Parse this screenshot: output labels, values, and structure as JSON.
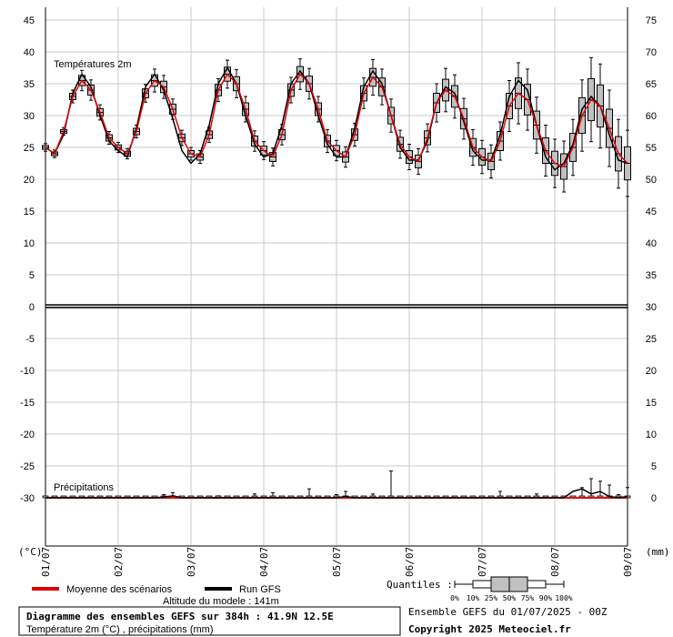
{
  "chart_data": {
    "type": "line",
    "panels": [
      {
        "name": "Températures 2m",
        "unit": "(°C)"
      },
      {
        "name": "Précipitations",
        "unit": "(mm)"
      }
    ],
    "left_axis_ticks": [
      "45",
      "40",
      "35",
      "30",
      "25",
      "20",
      "15",
      "10",
      "5",
      "0",
      "-5",
      "-10",
      "-15",
      "-20",
      "-25",
      "-30"
    ],
    "right_axis_ticks": [
      "75",
      "70",
      "65",
      "60",
      "55",
      "50",
      "45",
      "40",
      "35",
      "30",
      "25",
      "20",
      "15",
      "10",
      "5",
      "0"
    ],
    "x_tick_labels": [
      "01/07",
      "02/07",
      "03/07",
      "04/07",
      "05/07",
      "06/07",
      "07/07",
      "08/07",
      "09/07"
    ],
    "temp_ylim": [
      -30,
      45
    ],
    "temp_box_hours": [
      0,
      6,
      12,
      18,
      24,
      30,
      36,
      42,
      48,
      54,
      60,
      66,
      72,
      78,
      84,
      90,
      96,
      102,
      108,
      114,
      120,
      126,
      132,
      138,
      144,
      150,
      156,
      162,
      168,
      174,
      180,
      186,
      192,
      198,
      204,
      210,
      216,
      222,
      228,
      234,
      240,
      246,
      252,
      258,
      264,
      270,
      276,
      282,
      288,
      294,
      300,
      306,
      312,
      318,
      324,
      330,
      336,
      342,
      348,
      354,
      360,
      366,
      372,
      378,
      384
    ],
    "temp_mean": [
      25.0,
      24.0,
      27.5,
      33.0,
      35.5,
      34.0,
      30.5,
      26.5,
      25.0,
      24.0,
      27.5,
      33.5,
      35.5,
      34.5,
      31.0,
      26.5,
      24.0,
      23.5,
      27.0,
      34.0,
      36.5,
      35.0,
      31.0,
      26.0,
      24.5,
      23.5,
      27.0,
      34.0,
      36.5,
      35.0,
      31.0,
      26.0,
      24.5,
      23.5,
      27.0,
      33.5,
      36.0,
      34.5,
      30.0,
      25.5,
      23.5,
      22.8,
      26.5,
      32.0,
      34.0,
      33.0,
      29.5,
      25.0,
      23.5,
      22.8,
      26.0,
      31.5,
      33.5,
      32.5,
      28.5,
      24.5,
      22.5,
      22.0,
      25.0,
      30.0,
      32.5,
      31.5,
      28.0,
      24.0,
      22.5
    ],
    "temp_spread": [
      0.3,
      0.3,
      0.3,
      0.5,
      0.8,
      0.8,
      0.6,
      0.5,
      0.4,
      0.4,
      0.5,
      0.7,
      0.9,
      0.9,
      0.8,
      0.6,
      0.5,
      0.5,
      0.6,
      0.9,
      1.1,
      1.1,
      1.0,
      0.8,
      0.7,
      0.7,
      0.8,
      1.0,
      1.2,
      1.2,
      1.0,
      0.9,
      0.8,
      0.8,
      0.9,
      1.2,
      1.4,
      1.4,
      1.3,
      1.1,
      1.0,
      1.0,
      1.1,
      1.5,
      1.7,
      1.7,
      1.6,
      1.4,
      1.3,
      1.3,
      1.5,
      2.0,
      2.4,
      2.4,
      2.2,
      2.0,
      1.9,
      2.0,
      2.2,
      2.8,
      3.3,
      3.3,
      3.0,
      2.7,
      2.6
    ],
    "temp_gfs": [
      25.0,
      24.0,
      27.0,
      33.5,
      36.5,
      34.5,
      30.0,
      26.0,
      24.5,
      23.5,
      28.0,
      34.5,
      36.5,
      34.0,
      29.5,
      24.5,
      22.5,
      24.0,
      28.5,
      35.0,
      37.5,
      35.0,
      30.0,
      25.5,
      23.5,
      24.0,
      28.5,
      35.0,
      37.0,
      35.0,
      30.0,
      25.5,
      23.5,
      23.5,
      28.0,
      34.5,
      37.0,
      35.0,
      30.0,
      25.0,
      23.0,
      23.0,
      26.0,
      32.0,
      34.5,
      33.5,
      29.0,
      24.5,
      23.0,
      23.0,
      27.0,
      33.0,
      35.5,
      34.0,
      28.5,
      23.5,
      21.5,
      22.5,
      25.5,
      31.0,
      33.0,
      31.5,
      27.0,
      23.0,
      22.5
    ],
    "precip_ylim": [
      0,
      30
    ],
    "precip_hours": [
      0,
      6,
      12,
      18,
      24,
      30,
      36,
      42,
      48,
      54,
      60,
      66,
      72,
      78,
      84,
      90,
      96,
      102,
      108,
      114,
      120,
      126,
      132,
      138,
      144,
      150,
      156,
      162,
      168,
      174,
      180,
      186,
      192,
      198,
      204,
      210,
      216,
      222,
      228,
      234,
      240,
      246,
      252,
      258,
      264,
      270,
      276,
      282,
      288,
      294,
      300,
      306,
      312,
      318,
      324,
      330,
      336,
      342,
      348,
      354,
      360,
      366,
      372,
      378,
      384
    ],
    "precip_mean": [
      0,
      0,
      0,
      0,
      0,
      0,
      0,
      0,
      0,
      0,
      0,
      0,
      0,
      0,
      0,
      0,
      0,
      0,
      0,
      0,
      0,
      0,
      0,
      0,
      0,
      0,
      0,
      0,
      0,
      0,
      0,
      0,
      0,
      0,
      0,
      0,
      0,
      0,
      0,
      0,
      0,
      0,
      0,
      0,
      0,
      0,
      0,
      0,
      0,
      0,
      0,
      0,
      0,
      0,
      0,
      0,
      0,
      0,
      0,
      0,
      0,
      0,
      0,
      0,
      0
    ],
    "precip_gfs": [
      0,
      0,
      0,
      0,
      0,
      0,
      0,
      0,
      0,
      0,
      0,
      0,
      0,
      0.1,
      0.3,
      0,
      0,
      0,
      0,
      0,
      0,
      0,
      0,
      0,
      0,
      0,
      0,
      0,
      0,
      0,
      0,
      0,
      0,
      0.2,
      0,
      0,
      0,
      0,
      0,
      0,
      0,
      0,
      0,
      0,
      0,
      0,
      0,
      0,
      0,
      0,
      0,
      0,
      0,
      0,
      0,
      0,
      0,
      0,
      1.0,
      1.4,
      0.6,
      1.0,
      0.2,
      0,
      0.2
    ],
    "precip_max": [
      0,
      0,
      0,
      0,
      0,
      0,
      0,
      0,
      0,
      0,
      0,
      0,
      0,
      0.5,
      0.8,
      0,
      0,
      0,
      0,
      0.3,
      0,
      0,
      0,
      0.6,
      0,
      0.8,
      0,
      0,
      0,
      1.4,
      0,
      0,
      0.5,
      1.0,
      0,
      0,
      0.6,
      0,
      4.2,
      0,
      0,
      0,
      0,
      0,
      0,
      0,
      0,
      0,
      0,
      0,
      1.0,
      0,
      0,
      0,
      0.6,
      0,
      0,
      0,
      0,
      1.6,
      3.0,
      2.6,
      2.0,
      0.5,
      1.6
    ]
  },
  "panel_title_temp": "Températures 2m",
  "panel_title_precip": "Précipitations",
  "unit_left": "(°C)",
  "unit_right": "(mm)",
  "legend": {
    "mean_label": "Moyenne des scénarios",
    "run_label": "Run GFS",
    "quantiles_label": "Quantiles :",
    "quantile_ticks": [
      "0%",
      "10%",
      "25%",
      "50%",
      "75%",
      "90%",
      "100%"
    ],
    "mean_color": "#e00000",
    "run_color": "#000000"
  },
  "altitude": "Altitude du modele : 141m",
  "footer": {
    "title": "Diagramme des ensembles GEFS sur 384h : 41.9N 12.5E",
    "subtitle": "Température 2m (°C) , précipitations (mm)",
    "run": "Ensemble GEFS du 01/07/2025 - 00Z",
    "copyright": "Copyright 2025 Meteociel.fr"
  },
  "colors": {
    "grid": "#c8c8c8",
    "box_fill": "#c0c0c0",
    "mean": "#e00000",
    "gfs": "#000000"
  }
}
